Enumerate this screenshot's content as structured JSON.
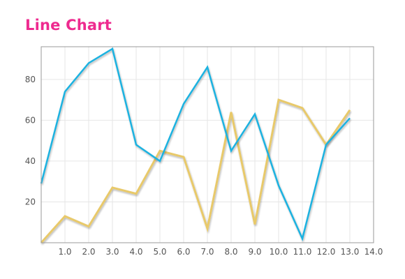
{
  "title": "Line Chart",
  "colors": {
    "title": "#ee2a8f",
    "series_a": "#1cb2e0",
    "series_b": "#e8c96a",
    "grid": "#e6e6e6",
    "frame": "#9a9a9a"
  },
  "chart_data": {
    "type": "line",
    "title": "Line Chart",
    "xlabel": "",
    "ylabel": "",
    "xlim": [
      0,
      14
    ],
    "ylim": [
      0,
      96
    ],
    "grid": true,
    "x_ticks": [
      "1.0",
      "2.0",
      "3.0",
      "4.0",
      "5.0",
      "6.0",
      "7.0",
      "8.0",
      "9.0",
      "10.0",
      "11.0",
      "12.0",
      "13.0",
      "14.0"
    ],
    "y_ticks": [
      "20",
      "40",
      "60",
      "80"
    ],
    "x": [
      0,
      1,
      2,
      3,
      4,
      5,
      6,
      7,
      8,
      9,
      10,
      11,
      12,
      13
    ],
    "series": [
      {
        "values": [
          29,
          74,
          88,
          95,
          48,
          40,
          68,
          86,
          45,
          63,
          28,
          2,
          48,
          61
        ]
      },
      {
        "values": [
          0,
          13,
          8,
          27,
          24,
          45,
          42,
          7,
          64,
          9,
          70,
          66,
          48,
          65
        ]
      }
    ]
  }
}
